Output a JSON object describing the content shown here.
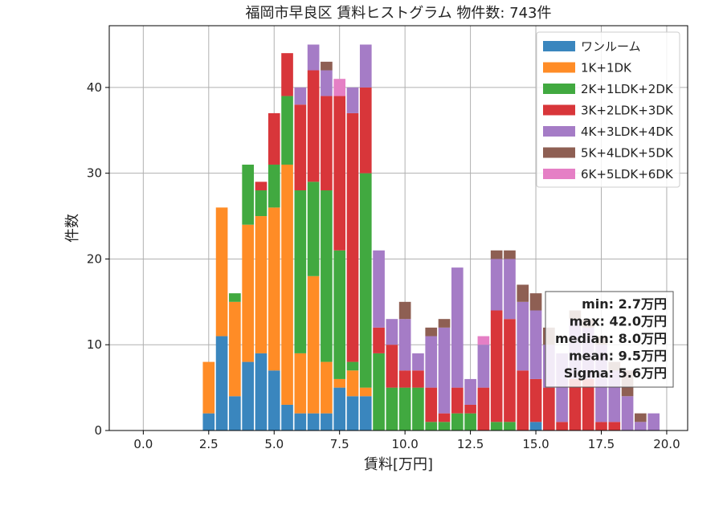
{
  "chart_data": {
    "type": "bar",
    "stacked": true,
    "title": "福岡市早良区 賃料ヒストグラム  物件数: 743件",
    "xlabel": "賃料[万円]",
    "ylabel": "件数",
    "xlim": [
      -1.3,
      20.8
    ],
    "ylim": [
      0,
      47.2
    ],
    "xticks": [
      "0.0",
      "2.5",
      "5.0",
      "7.5",
      "10.0",
      "12.5",
      "15.0",
      "17.5",
      "20.0"
    ],
    "xtick_values": [
      0,
      2.5,
      5,
      7.5,
      10,
      12.5,
      15,
      17.5,
      20
    ],
    "yticks": [
      "0",
      "10",
      "20",
      "30",
      "40"
    ],
    "ytick_values": [
      0,
      10,
      20,
      30,
      40
    ],
    "grid": true,
    "legend_position": "top-right",
    "bin_width": 0.5,
    "bins_start": [
      2.25,
      2.75,
      3.25,
      3.75,
      4.25,
      4.75,
      5.25,
      5.75,
      6.25,
      6.75,
      7.25,
      7.75,
      8.25,
      8.75,
      9.25,
      9.75,
      10.25,
      10.75,
      11.25,
      11.75,
      12.25,
      12.75,
      13.25,
      13.75,
      14.25,
      14.75,
      15.25,
      15.75,
      16.25,
      16.75,
      17.25,
      17.75,
      18.25,
      18.75,
      19.25
    ],
    "series": [
      {
        "name": "ワンルーム",
        "color": "#3a86be",
        "values": [
          2,
          11,
          4,
          8,
          9,
          7,
          3,
          2,
          2,
          2,
          5,
          4,
          4,
          0,
          0,
          0,
          0,
          0,
          0,
          0,
          0,
          0,
          0,
          0,
          0,
          1,
          0,
          0,
          0,
          0,
          0,
          0,
          0,
          0,
          0
        ]
      },
      {
        "name": "1K+1DK",
        "color": "#ff8c26",
        "values": [
          6,
          15,
          11,
          16,
          16,
          19,
          28,
          7,
          16,
          6,
          1,
          3,
          1,
          0,
          0,
          0,
          0,
          0,
          0,
          0,
          0,
          0,
          0,
          0,
          0,
          0,
          0,
          0,
          0,
          0,
          0,
          0,
          0,
          0,
          0
        ]
      },
      {
        "name": "2K+1LDK+2DK",
        "color": "#41a940",
        "values": [
          0,
          0,
          1,
          7,
          3,
          5,
          8,
          19,
          11,
          20,
          15,
          1,
          25,
          9,
          5,
          5,
          5,
          1,
          1,
          2,
          2,
          0,
          1,
          1,
          0,
          0,
          0,
          0,
          0,
          0,
          0,
          0,
          0,
          0,
          0
        ]
      },
      {
        "name": "3K+2LDK+3DK",
        "color": "#d8363a",
        "values": [
          0,
          0,
          0,
          0,
          1,
          6,
          5,
          10,
          13,
          11,
          18,
          29,
          10,
          3,
          5,
          2,
          2,
          4,
          1,
          3,
          1,
          5,
          13,
          12,
          7,
          5,
          5,
          1,
          6,
          6,
          1,
          1,
          0,
          0,
          0
        ]
      },
      {
        "name": "4K+3LDK+4DK",
        "color": "#a57cc6",
        "values": [
          0,
          0,
          0,
          0,
          0,
          0,
          0,
          2,
          3,
          3,
          0,
          3,
          5,
          9,
          3,
          6,
          2,
          6,
          10,
          14,
          3,
          5,
          6,
          7,
          8,
          8,
          5,
          8,
          7,
          6,
          9,
          6,
          4,
          1,
          2
        ]
      },
      {
        "name": "5K+4LDK+5DK",
        "color": "#8e5f53",
        "values": [
          0,
          0,
          0,
          0,
          0,
          0,
          0,
          0,
          0,
          1,
          0,
          0,
          0,
          0,
          0,
          2,
          0,
          1,
          1,
          0,
          0,
          0,
          1,
          1,
          2,
          2,
          2,
          0,
          1,
          1,
          1,
          1,
          3,
          1,
          0
        ]
      },
      {
        "name": "6K+5LDK+6DK",
        "color": "#e57fc5",
        "values": [
          0,
          0,
          0,
          0,
          0,
          0,
          0,
          0,
          0,
          0,
          2,
          0,
          0,
          0,
          0,
          0,
          0,
          0,
          0,
          0,
          0,
          1,
          0,
          0,
          0,
          0,
          0,
          0,
          0,
          0,
          0,
          0,
          0,
          0,
          0
        ]
      }
    ],
    "stats_box": {
      "lines": [
        "min: 2.7万円",
        "max: 42.0万円",
        "median: 8.0万円",
        "mean: 9.5万円",
        "Sigma: 5.6万円"
      ]
    }
  }
}
